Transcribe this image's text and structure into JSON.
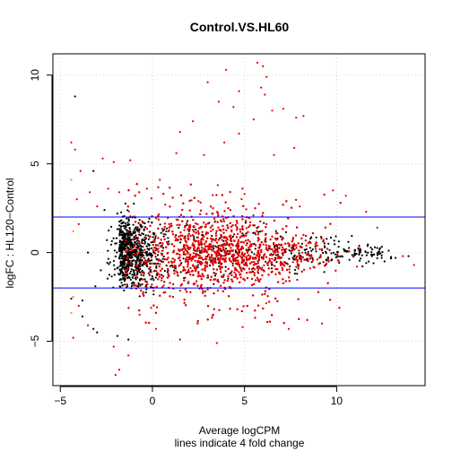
{
  "chart_data": {
    "type": "scatter",
    "title": "Control.VS.HL60",
    "xlabel": "Average logCPM",
    "xlabel2": "lines indicate 4 fold change",
    "ylabel": "logFC : HL120−Control",
    "xlim": [
      -5.4,
      14.8
    ],
    "ylim": [
      -7.5,
      11.2
    ],
    "xticks": [
      -5,
      0,
      5,
      10
    ],
    "yticks": [
      -5,
      0,
      5,
      10
    ],
    "xtick_labels": [
      "−5",
      "0",
      "5",
      "10"
    ],
    "ytick_labels": [
      "−5",
      "0",
      "5",
      "10"
    ],
    "grid": true,
    "hlines": [
      2,
      -2
    ],
    "colors": {
      "not_significant": "#000000",
      "significant": "#e00000",
      "low_count": "#ff8c00",
      "fold_change_lines": "#0000ff",
      "grid": "#d3d3d3"
    },
    "series": [
      {
        "color_key": "significant",
        "points": [
          [
            5.7,
            10.7
          ],
          [
            6.0,
            10.5
          ],
          [
            4.0,
            10.3
          ],
          [
            6.2,
            9.9
          ],
          [
            3.0,
            9.6
          ],
          [
            5.9,
            9.3
          ],
          [
            4.7,
            9.1
          ],
          [
            6.1,
            8.9
          ],
          [
            3.6,
            8.5
          ],
          [
            6.5,
            8.0
          ],
          [
            7.8,
            7.6
          ],
          [
            8.2,
            7.7
          ],
          [
            5.5,
            7.5
          ],
          [
            2.2,
            7.4
          ],
          [
            4.4,
            8.2
          ],
          [
            7.1,
            8.1
          ],
          [
            1.5,
            6.8
          ],
          [
            3.9,
            6.2
          ],
          [
            4.7,
            6.7
          ],
          [
            1.3,
            5.6
          ],
          [
            2.8,
            5.5
          ],
          [
            -2.1,
            5.1
          ],
          [
            -2.7,
            5.3
          ],
          [
            -4.4,
            6.2
          ],
          [
            -4.2,
            5.8
          ],
          [
            -3.9,
            4.6
          ],
          [
            -1.2,
            5.2
          ],
          [
            6.6,
            5.5
          ],
          [
            7.7,
            5.9
          ],
          [
            0.4,
            4.1
          ],
          [
            -0.3,
            3.6
          ],
          [
            9.8,
            3.5
          ],
          [
            10.5,
            3.2
          ],
          [
            -2.4,
            3.6
          ],
          [
            -3.4,
            3.4
          ],
          [
            -3.0,
            2.6
          ],
          [
            -1.8,
            3.4
          ],
          [
            -4.1,
            3.0
          ],
          [
            -4.0,
            1.6
          ],
          [
            0.7,
            2.7
          ],
          [
            2.5,
            2.9
          ],
          [
            5.0,
            3.3
          ],
          [
            8.0,
            2.6
          ],
          [
            11.6,
            2.3
          ],
          [
            12.2,
            1.4
          ],
          [
            -4.0,
            -3.0
          ],
          [
            -3.5,
            -4.1
          ],
          [
            -2.1,
            -5.3
          ],
          [
            -1.3,
            -5.8
          ],
          [
            -1.8,
            -6.6
          ],
          [
            -2.0,
            -6.9
          ],
          [
            -4.3,
            -4.8
          ],
          [
            1.5,
            -4.9
          ],
          [
            3.5,
            -5.1
          ],
          [
            0.2,
            -4.3
          ],
          [
            -0.7,
            -3.5
          ],
          [
            4.9,
            -4.2
          ],
          [
            7.4,
            -4.3
          ],
          [
            9.2,
            -4.0
          ],
          [
            13.6,
            -0.2
          ],
          [
            14.2,
            -0.7
          ],
          [
            11.1,
            -0.8
          ]
        ],
        "cloud": {
          "x": [
            -1.5,
            12.5
          ],
          "y_spread": [
            -3.5,
            4.0
          ]
        }
      },
      {
        "color_key": "not_significant",
        "points": [
          [
            -4.2,
            8.8
          ],
          [
            -3.2,
            4.6
          ],
          [
            -2.6,
            2.4
          ],
          [
            -3.1,
            -1.9
          ],
          [
            -3.8,
            -2.7
          ],
          [
            -3.8,
            -3.6
          ],
          [
            -3.2,
            -4.3
          ],
          [
            -4.4,
            -2.6
          ],
          [
            -3.0,
            -4.5
          ],
          [
            -1.9,
            -4.7
          ],
          [
            -1.3,
            -4.9
          ],
          [
            -3.5,
            0.0
          ],
          [
            -2.8,
            -1.0
          ],
          [
            -1.9,
            2.2
          ],
          [
            12.6,
            -0.5
          ],
          [
            13.2,
            -0.3
          ],
          [
            13.9,
            -0.2
          ],
          [
            12.0,
            -0.6
          ]
        ],
        "cloud": {
          "x": [
            -2.5,
            13.0
          ],
          "y_spread": [
            -2.0,
            2.0
          ]
        }
      },
      {
        "color_key": "low_count",
        "points": [
          [
            -4.4,
            4.1
          ],
          [
            -4.3,
            1.2
          ],
          [
            -4.3,
            -2.5
          ],
          [
            -4.4,
            -3.4
          ]
        ]
      }
    ]
  }
}
